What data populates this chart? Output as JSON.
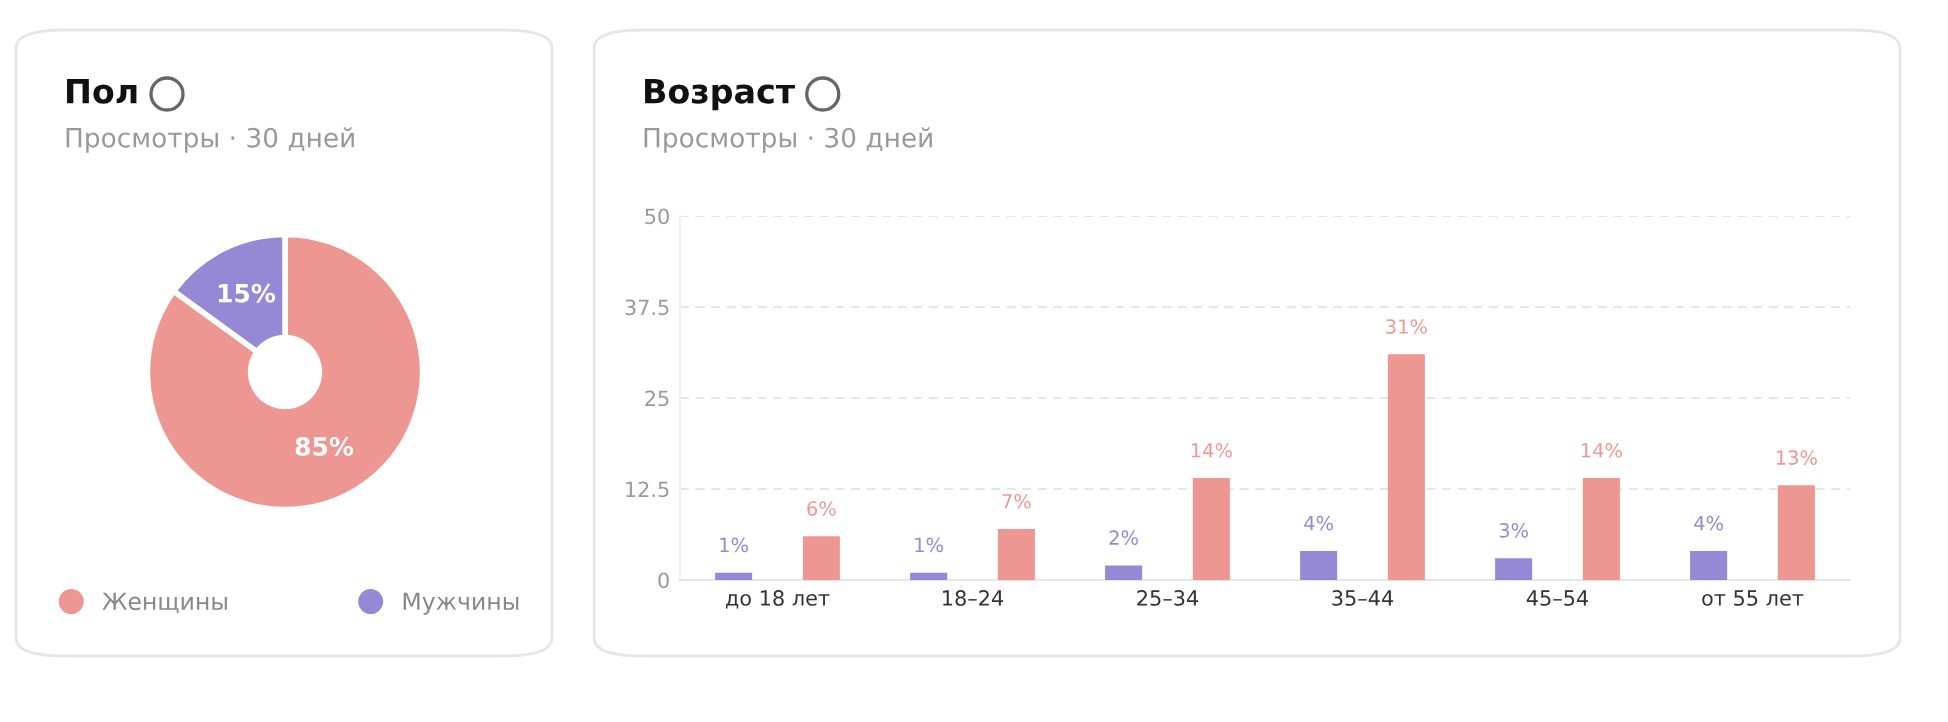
{
  "chart_data": [
    {
      "type": "donut",
      "title": "Пол",
      "subtitle": "Просмотры · 30 дней",
      "categories": [
        "Женщины",
        "Мужчины"
      ],
      "values": [
        85,
        15
      ],
      "colors": [
        "#ee9792",
        "#9589d6"
      ],
      "value_labels": [
        "85%",
        "15%"
      ],
      "legend": "bottom"
    },
    {
      "type": "bar",
      "title": "Возраст",
      "subtitle": "Просмотры · 30 дней",
      "categories": [
        "до 18 лет",
        "18–24",
        "25–34",
        "35–44",
        "45–54",
        "от 55 лет"
      ],
      "series": [
        {
          "color": "#9589d6",
          "values": [
            1,
            1,
            2,
            4,
            3,
            4
          ],
          "value_labels": [
            "1%",
            "1%",
            "2%",
            "4%",
            "3%",
            "4%"
          ]
        },
        {
          "color": "#ee9792",
          "values": [
            6,
            7,
            14,
            31,
            14,
            13
          ],
          "value_labels": [
            "6%",
            "7%",
            "14%",
            "31%",
            "14%",
            "13%"
          ]
        }
      ],
      "ylim": [
        0,
        50
      ],
      "yticks": [
        0,
        12.5,
        25,
        37.5,
        50
      ],
      "grid": "y"
    }
  ]
}
